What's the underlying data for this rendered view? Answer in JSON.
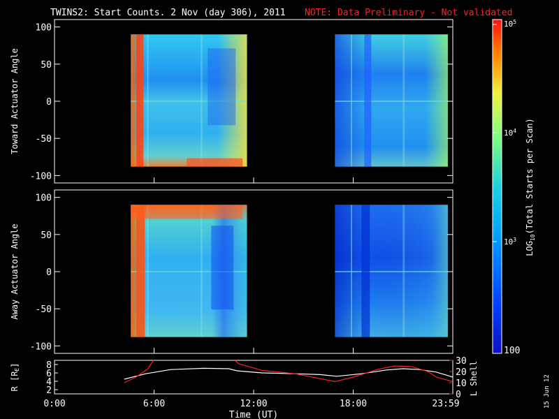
{
  "header": {
    "title": "TWINS2: Start Counts.  2 Nov (day 306), 2011",
    "note": "NOTE: Data Preliminary - Not validated"
  },
  "stamp": "15 Jun 12",
  "colors": {
    "note": "#ff2020",
    "r_line": "#ffffff",
    "lshell_line": "#ff2020"
  },
  "chart_data": [
    {
      "type": "heatmap",
      "name": "toward",
      "ylabel": "Toward Actuator Angle",
      "ylim": [
        -110,
        110
      ],
      "yticks": [
        "100",
        "50",
        "0",
        "-50",
        "-100"
      ],
      "angle_range": [
        -88,
        90
      ],
      "data_intervals_hours": [
        [
          4.6,
          11.6
        ],
        [
          16.9,
          23.7
        ]
      ],
      "xlim_hours": [
        0,
        24
      ]
    },
    {
      "type": "heatmap",
      "name": "away",
      "ylabel": "Away Actuator Angle",
      "ylim": [
        -110,
        110
      ],
      "yticks": [
        "100",
        "50",
        "0",
        "-50",
        "-100"
      ],
      "angle_range": [
        -88,
        90
      ],
      "data_intervals_hours": [
        [
          4.6,
          11.6
        ],
        [
          16.9,
          23.7
        ]
      ],
      "xlim_hours": [
        0,
        24
      ]
    },
    {
      "type": "line",
      "name": "orbit",
      "ylabel_left": "R [RE]",
      "ylabel_right": "L Shell",
      "left_ticks": [
        "8",
        "6",
        "4",
        "2"
      ],
      "right_ticks": [
        "30",
        "20",
        "10",
        "0"
      ],
      "xlabel": "Time (UT)",
      "xticks": [
        "0:00",
        "6:00",
        "12:00",
        "18:00",
        "23:59"
      ],
      "series": [
        {
          "name": "R",
          "x": [
            4.2,
            5.5,
            7.0,
            9.0,
            10.5,
            11.0,
            12.5,
            14.5,
            16.0,
            17.0,
            18.5,
            20.0,
            21.0,
            22.0,
            23.0,
            24.0
          ],
          "y": [
            4.5,
            5.8,
            6.8,
            7.1,
            7.0,
            6.5,
            6.0,
            5.8,
            5.6,
            5.2,
            5.8,
            6.7,
            7.0,
            6.8,
            6.2,
            5.0
          ]
        },
        {
          "name": "L",
          "x": [
            4.2,
            4.9,
            5.6,
            6.0,
            10.8,
            11.1,
            12.5,
            14.5,
            16.9,
            18.0,
            19.5,
            20.5,
            21.5,
            22.5,
            23.0,
            23.99
          ],
          "y": [
            10.0,
            15.0,
            22.0,
            31.0,
            31.0,
            27.0,
            21.0,
            18.0,
            11.0,
            15.0,
            22.0,
            25.0,
            24.5,
            20.0,
            15.0,
            11.0
          ]
        }
      ],
      "ylim_left": [
        1,
        9
      ],
      "ylim_right": [
        0,
        30
      ]
    }
  ],
  "colorbar": {
    "label": "LOG10(Total Starts per Scan)",
    "ticks": [
      "10^5",
      "10^4",
      "10^3",
      "100"
    ],
    "range": [
      100,
      100000
    ]
  }
}
